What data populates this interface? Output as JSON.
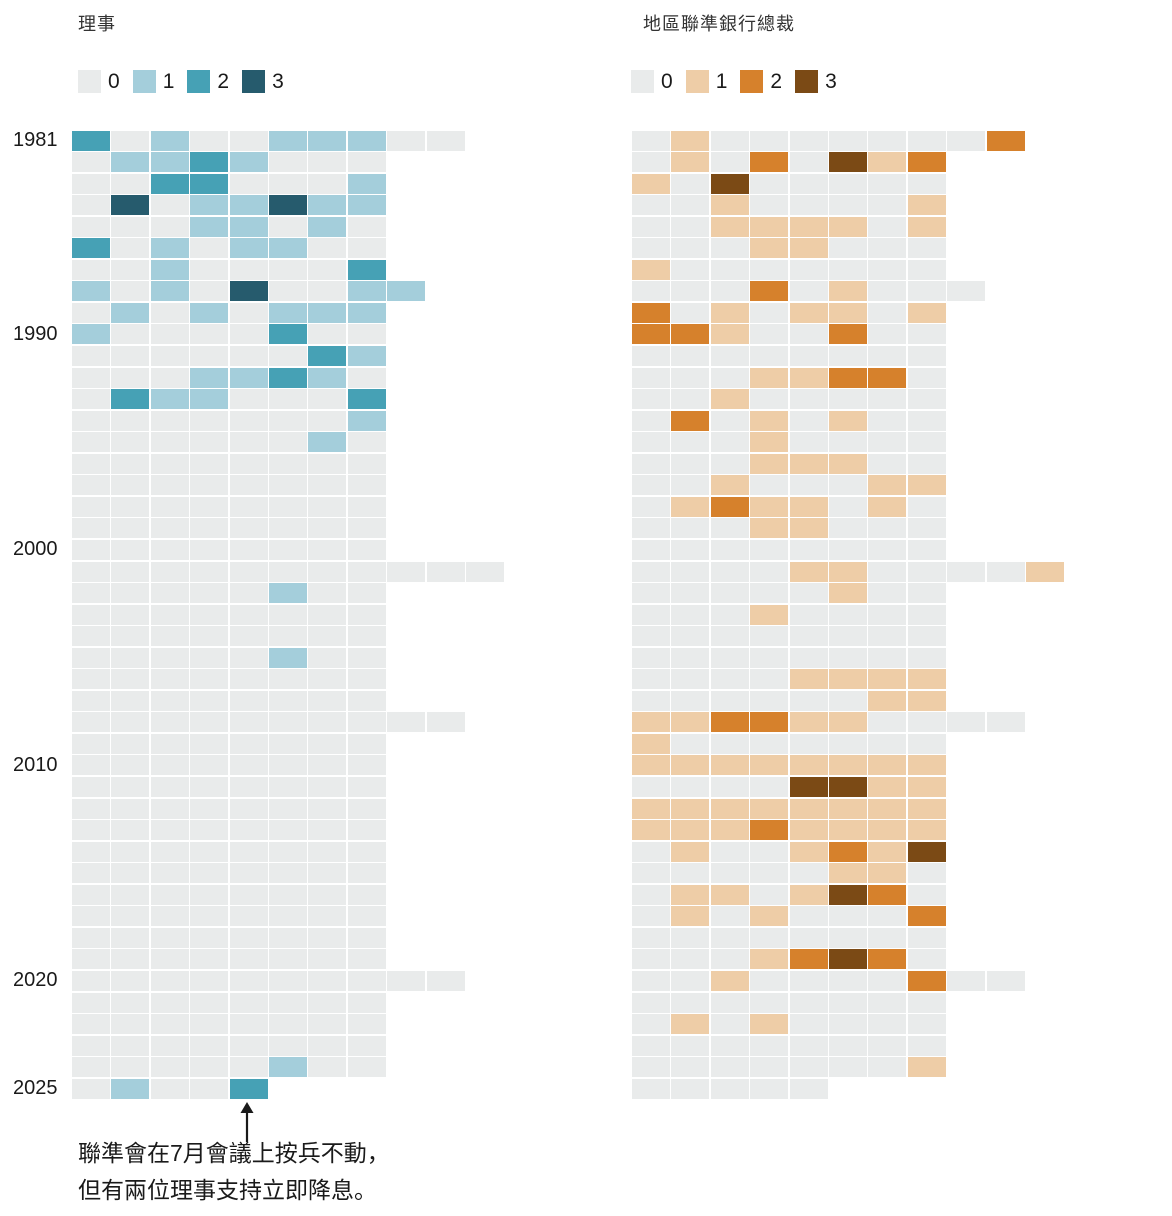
{
  "left_panel": {
    "title": "理事",
    "legend": [
      {
        "label": "0",
        "color": "#e9ebeb"
      },
      {
        "label": "1",
        "color": "#a4cedb"
      },
      {
        "label": "2",
        "color": "#46a1b5"
      },
      {
        "label": "3",
        "color": "#265b6d"
      }
    ]
  },
  "right_panel": {
    "title": "地區聯準銀行總裁",
    "legend": [
      {
        "label": "0",
        "color": "#e9ebeb"
      },
      {
        "label": "1",
        "color": "#eecda7"
      },
      {
        "label": "2",
        "color": "#d6812c"
      },
      {
        "label": "3",
        "color": "#7b4a15"
      }
    ]
  },
  "y_axis": {
    "labels": [
      {
        "year": "1981",
        "row": 0
      },
      {
        "year": "1990",
        "row": 9
      },
      {
        "year": "2000",
        "row": 19
      },
      {
        "year": "2010",
        "row": 29
      },
      {
        "year": "2020",
        "row": 39
      },
      {
        "year": "2025",
        "row": 44
      }
    ]
  },
  "annotation": {
    "line1": "聯準會在7月會議上按兵不動，",
    "line2": "但有兩位理事支持立即降息。"
  },
  "chart_data": {
    "type": "heatmap",
    "title_left": "理事",
    "title_right": "地區聯準銀行總裁",
    "legend_values": [
      "0",
      "1",
      "2",
      "3"
    ],
    "value_meaning": "dissents per FOMC meeting; one cell per meeting, one row per year",
    "years": [
      1981,
      1982,
      1983,
      1984,
      1985,
      1986,
      1987,
      1988,
      1989,
      1990,
      1991,
      1992,
      1993,
      1994,
      1995,
      1996,
      1997,
      1998,
      1999,
      2000,
      2001,
      2002,
      2003,
      2004,
      2005,
      2006,
      2007,
      2008,
      2009,
      2010,
      2011,
      2012,
      2013,
      2014,
      2015,
      2016,
      2017,
      2018,
      2019,
      2020,
      2021,
      2022,
      2023,
      2024,
      2025
    ],
    "series": [
      {
        "name": "理事",
        "palette": [
          "#e9ebeb",
          "#a4cedb",
          "#46a1b5",
          "#265b6d"
        ],
        "values": [
          [
            2,
            0,
            1,
            0,
            0,
            1,
            1,
            1,
            0,
            0
          ],
          [
            0,
            1,
            1,
            2,
            1,
            0,
            0,
            0
          ],
          [
            0,
            0,
            2,
            2,
            0,
            0,
            0,
            1
          ],
          [
            0,
            3,
            0,
            1,
            1,
            3,
            1,
            1
          ],
          [
            0,
            0,
            0,
            1,
            1,
            0,
            1,
            0
          ],
          [
            2,
            0,
            1,
            0,
            1,
            1,
            0,
            0
          ],
          [
            0,
            0,
            1,
            0,
            0,
            0,
            0,
            2
          ],
          [
            1,
            0,
            1,
            0,
            3,
            0,
            0,
            1,
            1
          ],
          [
            0,
            1,
            0,
            1,
            0,
            1,
            1,
            1
          ],
          [
            1,
            0,
            0,
            0,
            0,
            2,
            0,
            0
          ],
          [
            0,
            0,
            0,
            0,
            0,
            0,
            2,
            1
          ],
          [
            0,
            0,
            0,
            1,
            1,
            2,
            1,
            0
          ],
          [
            0,
            2,
            1,
            1,
            0,
            0,
            0,
            2
          ],
          [
            0,
            0,
            0,
            0,
            0,
            0,
            0,
            1
          ],
          [
            0,
            0,
            0,
            0,
            0,
            0,
            1,
            0
          ],
          [
            0,
            0,
            0,
            0,
            0,
            0,
            0,
            0
          ],
          [
            0,
            0,
            0,
            0,
            0,
            0,
            0,
            0
          ],
          [
            0,
            0,
            0,
            0,
            0,
            0,
            0,
            0
          ],
          [
            0,
            0,
            0,
            0,
            0,
            0,
            0,
            0
          ],
          [
            0,
            0,
            0,
            0,
            0,
            0,
            0,
            0
          ],
          [
            0,
            0,
            0,
            0,
            0,
            0,
            0,
            0,
            0,
            0,
            0
          ],
          [
            0,
            0,
            0,
            0,
            0,
            1,
            0,
            0
          ],
          [
            0,
            0,
            0,
            0,
            0,
            0,
            0,
            0
          ],
          [
            0,
            0,
            0,
            0,
            0,
            0,
            0,
            0
          ],
          [
            0,
            0,
            0,
            0,
            0,
            1,
            0,
            0
          ],
          [
            0,
            0,
            0,
            0,
            0,
            0,
            0,
            0
          ],
          [
            0,
            0,
            0,
            0,
            0,
            0,
            0,
            0
          ],
          [
            0,
            0,
            0,
            0,
            0,
            0,
            0,
            0,
            0,
            0
          ],
          [
            0,
            0,
            0,
            0,
            0,
            0,
            0,
            0
          ],
          [
            0,
            0,
            0,
            0,
            0,
            0,
            0,
            0
          ],
          [
            0,
            0,
            0,
            0,
            0,
            0,
            0,
            0
          ],
          [
            0,
            0,
            0,
            0,
            0,
            0,
            0,
            0
          ],
          [
            0,
            0,
            0,
            0,
            0,
            0,
            0,
            0
          ],
          [
            0,
            0,
            0,
            0,
            0,
            0,
            0,
            0
          ],
          [
            0,
            0,
            0,
            0,
            0,
            0,
            0,
            0
          ],
          [
            0,
            0,
            0,
            0,
            0,
            0,
            0,
            0
          ],
          [
            0,
            0,
            0,
            0,
            0,
            0,
            0,
            0
          ],
          [
            0,
            0,
            0,
            0,
            0,
            0,
            0,
            0
          ],
          [
            0,
            0,
            0,
            0,
            0,
            0,
            0,
            0
          ],
          [
            0,
            0,
            0,
            0,
            0,
            0,
            0,
            0,
            0,
            0
          ],
          [
            0,
            0,
            0,
            0,
            0,
            0,
            0,
            0
          ],
          [
            0,
            0,
            0,
            0,
            0,
            0,
            0,
            0
          ],
          [
            0,
            0,
            0,
            0,
            0,
            0,
            0,
            0
          ],
          [
            0,
            0,
            0,
            0,
            0,
            1,
            0,
            0
          ],
          [
            0,
            1,
            0,
            0,
            2
          ]
        ]
      },
      {
        "name": "地區聯準銀行總裁",
        "palette": [
          "#e9ebeb",
          "#eecda7",
          "#d6812c",
          "#7b4a15"
        ],
        "values": [
          [
            0,
            1,
            0,
            0,
            0,
            0,
            0,
            0,
            0,
            2
          ],
          [
            0,
            1,
            0,
            2,
            0,
            3,
            1,
            2
          ],
          [
            1,
            0,
            3,
            0,
            0,
            0,
            0,
            0
          ],
          [
            0,
            0,
            1,
            0,
            0,
            0,
            0,
            1
          ],
          [
            0,
            0,
            1,
            1,
            1,
            1,
            0,
            1
          ],
          [
            0,
            0,
            0,
            1,
            1,
            0,
            0,
            0
          ],
          [
            1,
            0,
            0,
            0,
            0,
            0,
            0,
            0
          ],
          [
            0,
            0,
            0,
            2,
            0,
            1,
            0,
            0,
            0
          ],
          [
            2,
            0,
            1,
            0,
            1,
            1,
            0,
            1
          ],
          [
            2,
            2,
            1,
            0,
            0,
            2,
            0,
            0
          ],
          [
            0,
            0,
            0,
            0,
            0,
            0,
            0,
            0
          ],
          [
            0,
            0,
            0,
            1,
            1,
            2,
            2,
            0
          ],
          [
            0,
            0,
            1,
            0,
            0,
            0,
            0,
            0
          ],
          [
            0,
            2,
            0,
            1,
            0,
            1,
            0,
            0
          ],
          [
            0,
            0,
            0,
            1,
            0,
            0,
            0,
            0
          ],
          [
            0,
            0,
            0,
            1,
            1,
            1,
            0,
            0
          ],
          [
            0,
            0,
            1,
            0,
            0,
            0,
            1,
            1
          ],
          [
            0,
            1,
            2,
            1,
            1,
            0,
            1,
            0
          ],
          [
            0,
            0,
            0,
            1,
            1,
            0,
            0,
            0
          ],
          [
            0,
            0,
            0,
            0,
            0,
            0,
            0,
            0
          ],
          [
            0,
            0,
            0,
            0,
            1,
            1,
            0,
            0,
            0,
            0,
            1
          ],
          [
            0,
            0,
            0,
            0,
            0,
            1,
            0,
            0
          ],
          [
            0,
            0,
            0,
            1,
            0,
            0,
            0,
            0
          ],
          [
            0,
            0,
            0,
            0,
            0,
            0,
            0,
            0
          ],
          [
            0,
            0,
            0,
            0,
            0,
            0,
            0,
            0
          ],
          [
            0,
            0,
            0,
            0,
            1,
            1,
            1,
            1
          ],
          [
            0,
            0,
            0,
            0,
            0,
            0,
            1,
            1
          ],
          [
            1,
            1,
            2,
            2,
            1,
            1,
            0,
            0,
            0,
            0
          ],
          [
            1,
            0,
            0,
            0,
            0,
            0,
            0,
            0
          ],
          [
            1,
            1,
            1,
            1,
            1,
            1,
            1,
            1
          ],
          [
            0,
            0,
            0,
            0,
            3,
            3,
            1,
            1
          ],
          [
            1,
            1,
            1,
            1,
            1,
            1,
            1,
            1
          ],
          [
            1,
            1,
            1,
            2,
            1,
            1,
            1,
            1
          ],
          [
            0,
            1,
            0,
            0,
            1,
            2,
            1,
            3
          ],
          [
            0,
            0,
            0,
            0,
            0,
            1,
            1,
            0
          ],
          [
            0,
            1,
            1,
            0,
            1,
            3,
            2,
            0
          ],
          [
            0,
            1,
            0,
            1,
            0,
            0,
            0,
            2
          ],
          [
            0,
            0,
            0,
            0,
            0,
            0,
            0,
            0
          ],
          [
            0,
            0,
            0,
            1,
            2,
            3,
            2,
            0
          ],
          [
            0,
            0,
            1,
            0,
            0,
            0,
            0,
            2,
            0,
            0
          ],
          [
            0,
            0,
            0,
            0,
            0,
            0,
            0,
            0
          ],
          [
            0,
            1,
            0,
            1,
            0,
            0,
            0,
            0
          ],
          [
            0,
            0,
            0,
            0,
            0,
            0,
            0,
            0
          ],
          [
            0,
            0,
            0,
            0,
            0,
            0,
            0,
            1
          ],
          [
            0,
            0,
            0,
            0,
            0
          ]
        ]
      }
    ],
    "layout": {
      "rows": 45,
      "default_cols_per_row": 8,
      "grid_on": false,
      "legend_position": "top"
    }
  }
}
